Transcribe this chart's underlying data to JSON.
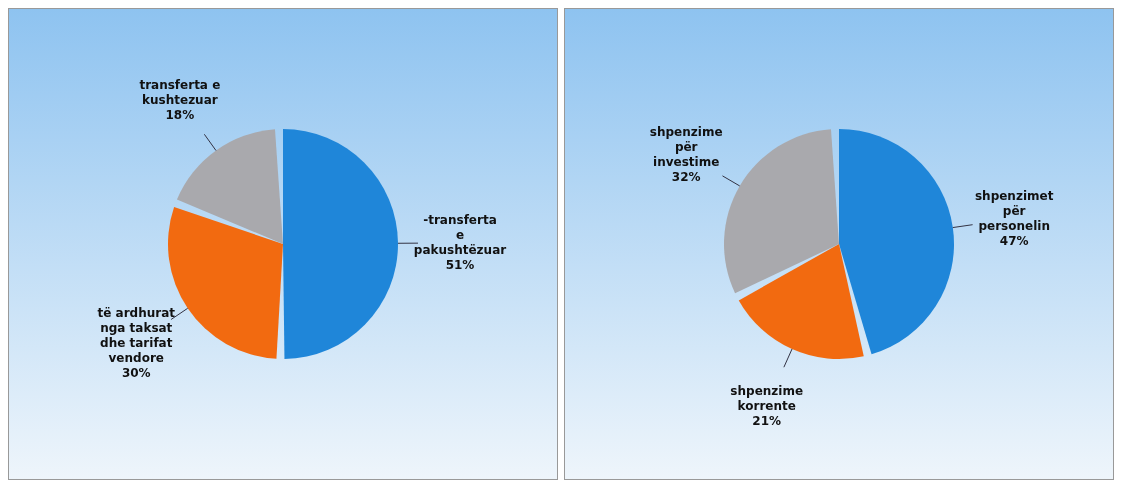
{
  "chart_data": [
    {
      "type": "pie",
      "categories": [
        "-transferta e pakushtëzuar",
        "të ardhurat nga taksat dhe tarifat vendore",
        "transferta e kushtezuar"
      ],
      "values": [
        51,
        30,
        18
      ],
      "value_labels": [
        "51%",
        "30%",
        "18%"
      ],
      "colors": [
        "#1f86d9",
        "#f26a10",
        "#a9a9ad"
      ],
      "legend": false
    },
    {
      "type": "pie",
      "categories": [
        "shpenzimet për personelin",
        "shpenzime korrente",
        "shpenzime për investime"
      ],
      "values": [
        47,
        21,
        32
      ],
      "value_labels": [
        "47%",
        "21%",
        "32%"
      ],
      "colors": [
        "#1f86d9",
        "#f26a10",
        "#a9a9ad"
      ],
      "legend": false
    }
  ]
}
